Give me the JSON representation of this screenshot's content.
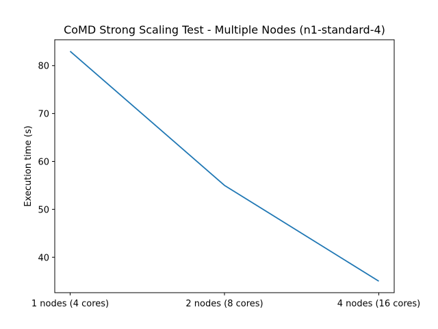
{
  "chart_data": {
    "type": "line",
    "title": "CoMD Strong Scaling Test - Multiple Nodes (n1-standard-4)",
    "xlabel": "",
    "ylabel": "Execution time (s)",
    "categories": [
      "1 nodes (4 cores)",
      "2 nodes (8 cores)",
      "4 nodes (16 cores)"
    ],
    "series": [
      {
        "values": [
          83,
          55,
          35
        ],
        "color": "#1f77b4"
      }
    ],
    "ylim": [
      32.6,
      85.4
    ],
    "yticks": [
      40,
      50,
      60,
      70,
      80
    ],
    "grid": false,
    "legend": "none"
  }
}
